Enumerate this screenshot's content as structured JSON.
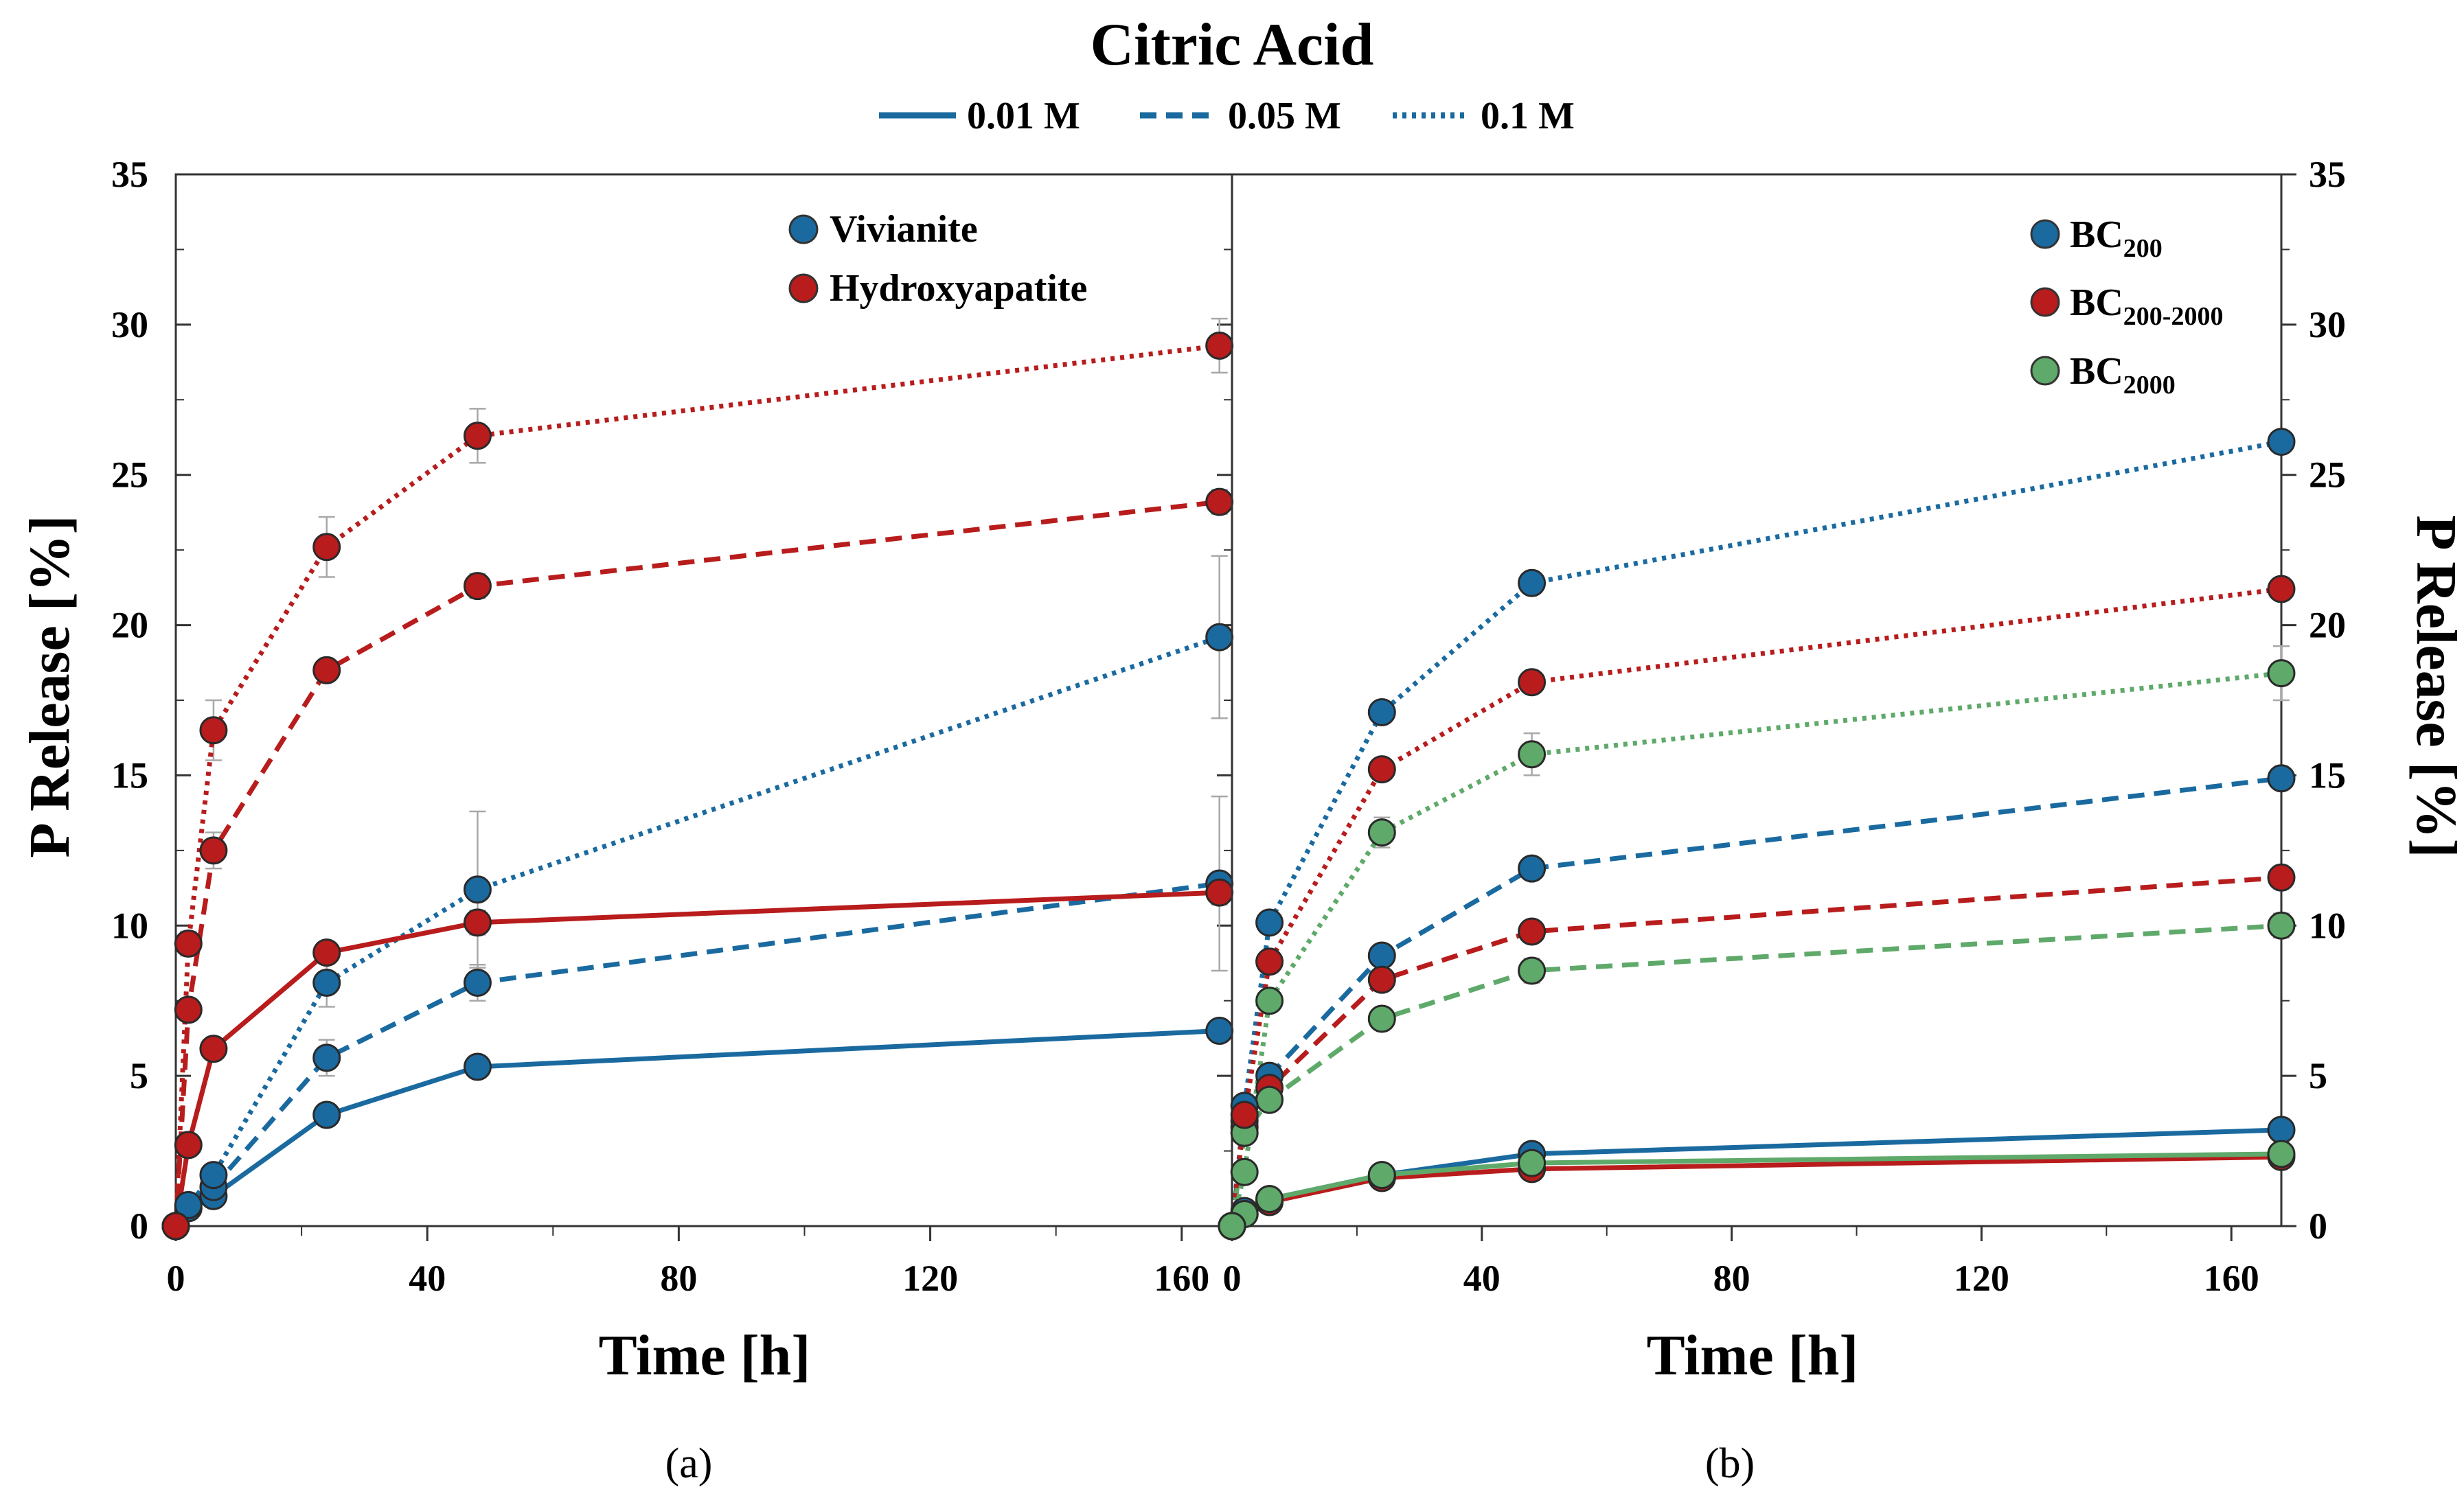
{
  "figure_title": "Citric Acid",
  "line_style_legend": [
    {
      "label": "0.01 M",
      "style": "solid"
    },
    {
      "label": "0.05 M",
      "style": "dashed"
    },
    {
      "label": "0.1 M",
      "style": "dotted"
    }
  ],
  "colors": {
    "blue": "#1a6aa0",
    "red": "#b81c1c",
    "green": "#5fa96a",
    "axis": "#333333",
    "error": "#a8a8a8"
  },
  "chart_data": [
    {
      "panel": "a",
      "panel_label": "(a)",
      "type": "line",
      "xlabel": "Time [h]",
      "ylabel": "P Release [%]",
      "xlim": [
        0,
        168
      ],
      "ylim": [
        0,
        35
      ],
      "xticks": [
        "0",
        "40",
        "80",
        "120",
        "160"
      ],
      "yticks": [
        "0",
        "5",
        "10",
        "15",
        "20",
        "25",
        "30",
        "35"
      ],
      "legend": [
        {
          "label": "Vivianite",
          "color": "blue"
        },
        {
          "label": "Hydroxyapatite",
          "color": "red"
        }
      ],
      "series": [
        {
          "name": "Vivianite 0.01 M",
          "color": "blue",
          "style": "solid",
          "x": [
            0,
            2,
            6,
            24,
            48,
            166
          ],
          "y": [
            0,
            0.6,
            1.0,
            3.7,
            5.3,
            6.5
          ],
          "err": [
            0,
            0.2,
            0.2,
            0.3,
            0.3,
            0.3
          ]
        },
        {
          "name": "Vivianite 0.05 M",
          "color": "blue",
          "style": "dashed",
          "x": [
            0,
            2,
            6,
            24,
            48,
            166
          ],
          "y": [
            0,
            0.6,
            1.3,
            5.6,
            8.1,
            11.4
          ],
          "err": [
            0,
            0.2,
            0.3,
            0.6,
            0.6,
            2.9
          ]
        },
        {
          "name": "Vivianite 0.1 M",
          "color": "blue",
          "style": "dotted",
          "x": [
            0,
            2,
            6,
            24,
            48,
            166
          ],
          "y": [
            0,
            0.7,
            1.7,
            8.1,
            11.2,
            19.6
          ],
          "err": [
            0,
            0.2,
            0.3,
            0.8,
            2.6,
            2.7
          ]
        },
        {
          "name": "Hydroxyapatite 0.01 M",
          "color": "red",
          "style": "solid",
          "x": [
            0,
            2,
            6,
            24,
            48,
            166
          ],
          "y": [
            0,
            2.7,
            5.9,
            9.1,
            10.1,
            11.1
          ],
          "err": [
            0,
            0.2,
            0.3,
            0.3,
            0.4,
            0.4
          ]
        },
        {
          "name": "Hydroxyapatite 0.05 M",
          "color": "red",
          "style": "dashed",
          "x": [
            0,
            2,
            6,
            24,
            48,
            166
          ],
          "y": [
            0,
            7.2,
            12.5,
            18.5,
            21.3,
            24.1
          ],
          "err": [
            0,
            0.3,
            0.6,
            0.3,
            0.4,
            0.4
          ]
        },
        {
          "name": "Hydroxyapatite 0.1 M",
          "color": "red",
          "style": "dotted",
          "x": [
            0,
            2,
            6,
            24,
            48,
            166
          ],
          "y": [
            0,
            9.4,
            16.5,
            22.6,
            26.3,
            29.3
          ],
          "err": [
            0,
            0.4,
            1.0,
            1.0,
            0.9,
            0.9
          ]
        }
      ]
    },
    {
      "panel": "b",
      "panel_label": "(b)",
      "type": "line",
      "xlabel": "Time [h]",
      "ylabel": "P Release [%]",
      "xlim": [
        0,
        168
      ],
      "ylim": [
        0,
        35
      ],
      "xticks": [
        "0",
        "40",
        "80",
        "120",
        "160"
      ],
      "yticks": [
        "0",
        "5",
        "10",
        "15",
        "20",
        "25",
        "30",
        "35"
      ],
      "legend": [
        {
          "label": "BC",
          "sub": "200",
          "color": "blue"
        },
        {
          "label": "BC",
          "sub": "200-2000",
          "color": "red"
        },
        {
          "label": "BC",
          "sub": "2000",
          "color": "green"
        }
      ],
      "series": [
        {
          "name": "BC200 0.01 M",
          "color": "blue",
          "style": "solid",
          "x": [
            0,
            2,
            6,
            24,
            48,
            168
          ],
          "y": [
            0,
            0.5,
            0.9,
            1.7,
            2.4,
            3.2
          ],
          "err": [
            0,
            0.1,
            0.1,
            0.1,
            0.1,
            0.1
          ]
        },
        {
          "name": "BC200-2000 0.01 M",
          "color": "red",
          "style": "solid",
          "x": [
            0,
            2,
            6,
            24,
            48,
            168
          ],
          "y": [
            0,
            0.4,
            0.8,
            1.6,
            1.9,
            2.3
          ],
          "err": [
            0,
            0.1,
            0.1,
            0.1,
            0.1,
            0.1
          ]
        },
        {
          "name": "BC2000 0.01 M",
          "color": "green",
          "style": "solid",
          "x": [
            0,
            2,
            6,
            24,
            48,
            168
          ],
          "y": [
            0,
            0.4,
            0.9,
            1.7,
            2.1,
            2.4
          ],
          "err": [
            0,
            0.1,
            0.1,
            0.1,
            0.1,
            0.1
          ]
        },
        {
          "name": "BC200 0.05 M",
          "color": "blue",
          "style": "dashed",
          "x": [
            0,
            2,
            6,
            24,
            48,
            168
          ],
          "y": [
            0,
            3.5,
            5.0,
            9.0,
            11.9,
            14.9
          ],
          "err": [
            0,
            0.2,
            0.2,
            0.3,
            0.3,
            0.3
          ]
        },
        {
          "name": "BC200-2000 0.05 M",
          "color": "red",
          "style": "dashed",
          "x": [
            0,
            2,
            6,
            24,
            48,
            168
          ],
          "y": [
            0,
            3.3,
            4.6,
            8.2,
            9.8,
            11.6
          ],
          "err": [
            0,
            0.2,
            0.2,
            0.3,
            0.3,
            0.3
          ]
        },
        {
          "name": "BC2000 0.05 M",
          "color": "green",
          "style": "dashed",
          "x": [
            0,
            2,
            6,
            24,
            48,
            168
          ],
          "y": [
            0,
            3.1,
            4.2,
            6.9,
            8.5,
            10.0
          ],
          "err": [
            0,
            0.2,
            0.2,
            0.3,
            0.4,
            0.4
          ]
        },
        {
          "name": "BC200 0.1 M",
          "color": "blue",
          "style": "dotted",
          "x": [
            0,
            2,
            6,
            24,
            48,
            168
          ],
          "y": [
            0,
            4.0,
            10.1,
            17.1,
            21.4,
            26.1
          ],
          "err": [
            0,
            0.3,
            0.3,
            0.3,
            0.3,
            0.3
          ]
        },
        {
          "name": "BC200-2000 0.1 M",
          "color": "red",
          "style": "dotted",
          "x": [
            0,
            2,
            6,
            24,
            48,
            168
          ],
          "y": [
            0,
            3.7,
            8.8,
            15.2,
            18.1,
            21.2
          ],
          "err": [
            0,
            0.3,
            0.3,
            0.3,
            0.3,
            0.3
          ]
        },
        {
          "name": "BC2000 0.1 M",
          "color": "green",
          "style": "dotted",
          "x": [
            0,
            2,
            6,
            24,
            48,
            168
          ],
          "y": [
            0,
            1.8,
            7.5,
            13.1,
            15.7,
            18.4
          ],
          "err": [
            0,
            0.3,
            0.3,
            0.5,
            0.7,
            0.9
          ]
        }
      ]
    }
  ]
}
